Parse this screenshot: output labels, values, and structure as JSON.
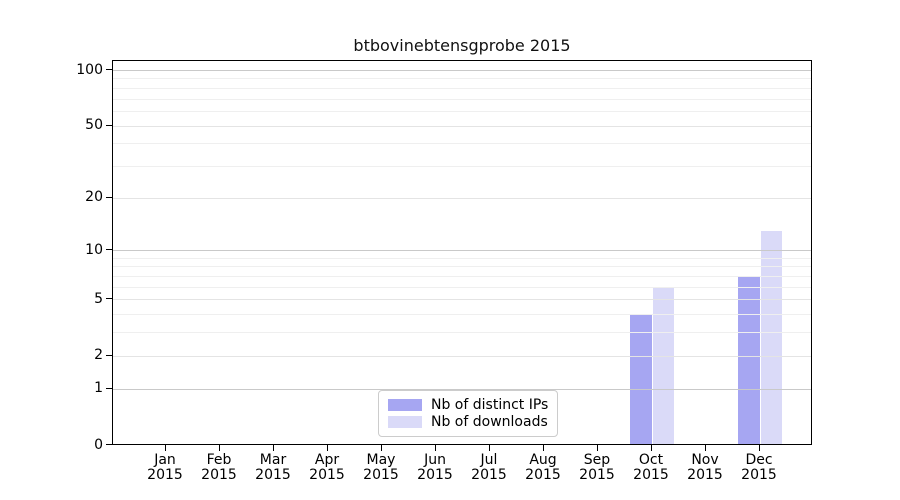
{
  "chart_data": {
    "type": "bar",
    "title": "btbovinebtensgprobe 2015",
    "year": "2015",
    "categories": [
      "Jan",
      "Feb",
      "Mar",
      "Apr",
      "May",
      "Jun",
      "Jul",
      "Aug",
      "Sep",
      "Oct",
      "Nov",
      "Dec"
    ],
    "series": [
      {
        "name": "Nb of distinct IPs",
        "color": "#a6a6f2",
        "values": [
          0,
          0,
          0,
          0,
          0,
          0,
          0,
          0,
          0,
          4,
          0,
          7
        ]
      },
      {
        "name": "Nb of downloads",
        "color": "#dadaf8",
        "values": [
          0,
          0,
          0,
          0,
          0,
          0,
          0,
          0,
          0,
          6,
          0,
          13
        ]
      }
    ],
    "yscale": "log1p",
    "ylim": [
      0,
      100
    ],
    "y_major_ticks": [
      0,
      1,
      2,
      5,
      10,
      20,
      50,
      100
    ],
    "y_decade_gridlines": [
      1,
      10,
      100
    ],
    "y_minor_gridlines": [
      3,
      4,
      6,
      7,
      8,
      9,
      30,
      40,
      60,
      70,
      80,
      90
    ],
    "grid": true,
    "legend_position": "lower center",
    "axis_color": "#000000",
    "gridline_major_color": "#c9c9c9",
    "gridline_minor_color": "#efefef",
    "background_color": "#ffffff"
  }
}
